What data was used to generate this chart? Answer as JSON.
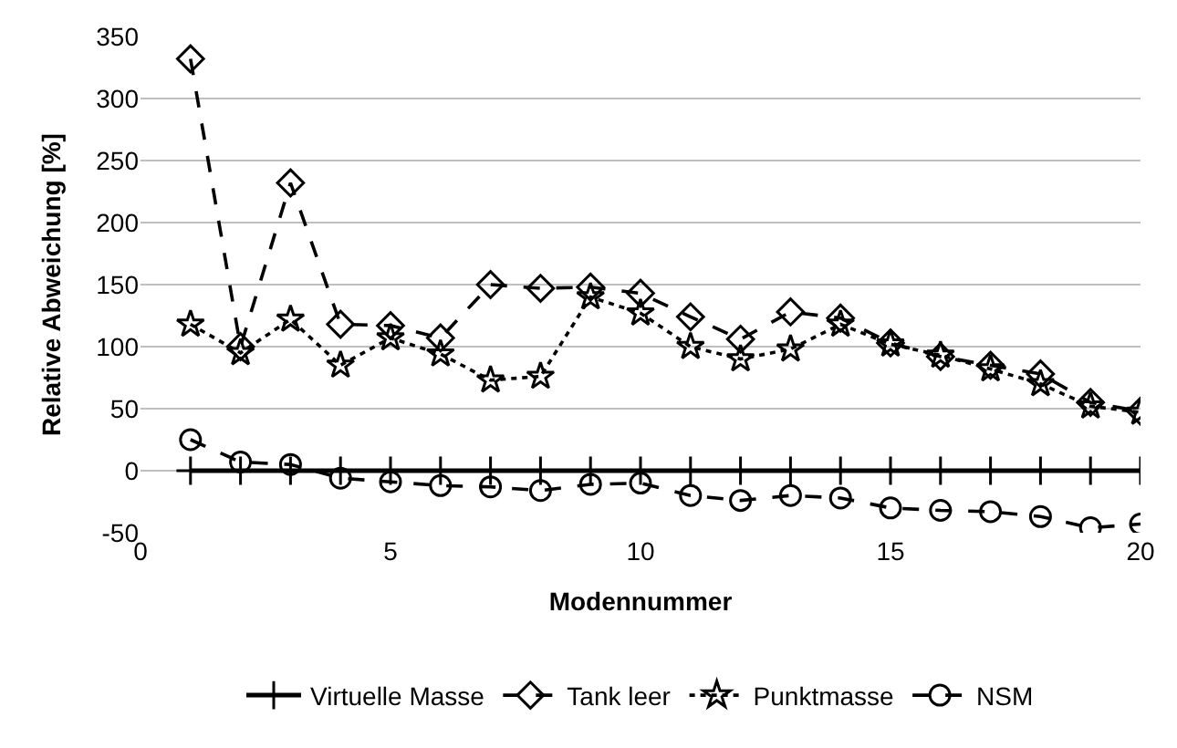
{
  "chart_data": {
    "type": "line",
    "xlabel": "Modennummer",
    "ylabel": "Relative Abweichung [%]",
    "x": [
      1,
      2,
      3,
      4,
      5,
      6,
      7,
      8,
      9,
      10,
      11,
      12,
      13,
      14,
      15,
      16,
      17,
      18,
      19,
      20
    ],
    "series": [
      {
        "name": "Virtuelle Masse",
        "color": "#000000",
        "line_style": "solid",
        "marker": "cross",
        "values": [
          0,
          0,
          0,
          0,
          0,
          0,
          0,
          0,
          0,
          0,
          0,
          0,
          0,
          0,
          0,
          0,
          0,
          0,
          0,
          0
        ]
      },
      {
        "name": "Tank leer",
        "color": "#000000",
        "line_style": "dashed",
        "marker": "diamond",
        "values": [
          332,
          100,
          232,
          118,
          117,
          107,
          150,
          147,
          148,
          143,
          124,
          106,
          128,
          123,
          103,
          92,
          85,
          78,
          55,
          48
        ]
      },
      {
        "name": "Punktmasse",
        "color": "#000000",
        "line_style": "dotted",
        "marker": "star",
        "values": [
          118,
          95,
          122,
          85,
          107,
          94,
          73,
          76,
          140,
          127,
          100,
          90,
          98,
          118,
          102,
          93,
          82,
          70,
          52,
          47
        ]
      },
      {
        "name": "NSM",
        "color": "#000000",
        "line_style": "dashed",
        "marker": "circle",
        "values": [
          25,
          7,
          5,
          -6,
          -9,
          -12,
          -13,
          -16,
          -11,
          -10,
          -20,
          -24,
          -20,
          -22,
          -30,
          -32,
          -33,
          -37,
          -46,
          -43
        ]
      }
    ],
    "xlim": [
      0,
      20
    ],
    "xticks": [
      0,
      5,
      10,
      15,
      20
    ],
    "ylim": [
      -50,
      350
    ],
    "yticks": [
      -50,
      0,
      50,
      100,
      150,
      200,
      250,
      300,
      350
    ],
    "grid": "y",
    "legend": "bottom"
  }
}
